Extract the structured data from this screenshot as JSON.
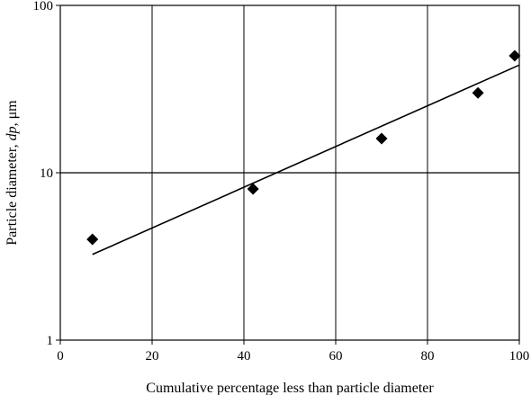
{
  "chart_data": {
    "type": "scatter",
    "title": "",
    "xlabel": "Cumulative percentage less than particle diameter",
    "ylabel": {
      "prefix": "Particle diameter, ",
      "var": "dp",
      "suffix": ", μm"
    },
    "xlim": [
      0,
      100
    ],
    "ylim": [
      1,
      100
    ],
    "yscale": "log",
    "x_ticks": [
      0,
      20,
      40,
      60,
      80,
      100
    ],
    "y_ticks": [
      1,
      10,
      100
    ],
    "grid": true,
    "legend": "none",
    "series": [
      {
        "marker": "diamond",
        "color": "#000000",
        "x": [
          7,
          42,
          70,
          91,
          99
        ],
        "y": [
          4,
          8,
          16,
          30,
          50
        ]
      }
    ],
    "trendline": {
      "type": "exponential",
      "color": "#000000",
      "x": [
        7,
        100
      ],
      "y": [
        3.25,
        44
      ]
    }
  }
}
